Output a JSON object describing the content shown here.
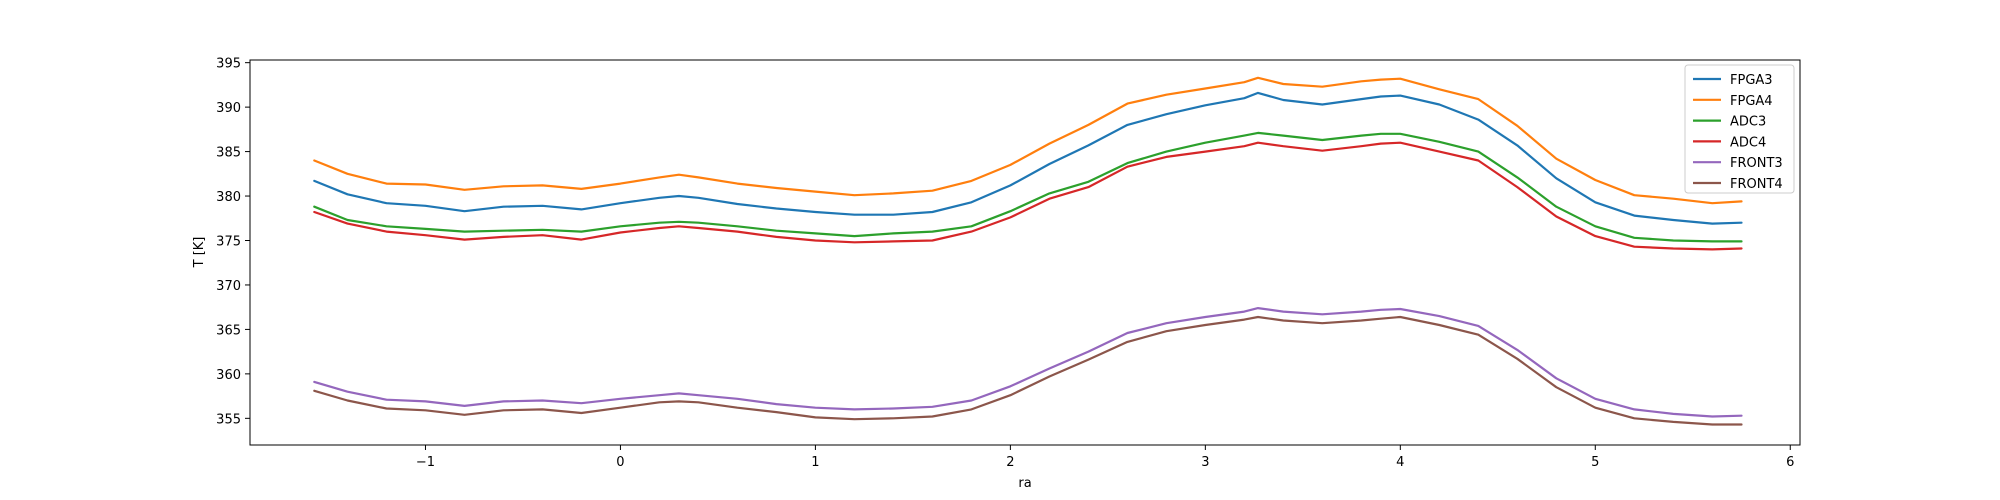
{
  "chart_data": {
    "type": "line",
    "title": "",
    "xlabel": "ra",
    "ylabel": "T [K]",
    "xlim": [
      -1.9,
      6.05
    ],
    "ylim": [
      352,
      395.3
    ],
    "xticks": [
      -1,
      0,
      1,
      2,
      3,
      4,
      5,
      6
    ],
    "xtick_labels": [
      "−1",
      "0",
      "1",
      "2",
      "3",
      "4",
      "5",
      "6"
    ],
    "yticks": [
      355,
      360,
      365,
      370,
      375,
      380,
      385,
      390,
      395
    ],
    "ytick_labels": [
      "355",
      "360",
      "365",
      "370",
      "375",
      "380",
      "385",
      "390",
      "395"
    ],
    "grid": false,
    "legend": "top-right",
    "x": [
      -1.57,
      -1.4,
      -1.2,
      -1.0,
      -0.8,
      -0.6,
      -0.4,
      -0.2,
      0.0,
      0.2,
      0.3,
      0.4,
      0.6,
      0.8,
      1.0,
      1.2,
      1.4,
      1.6,
      1.8,
      2.0,
      2.2,
      2.4,
      2.6,
      2.8,
      3.0,
      3.2,
      3.27,
      3.4,
      3.6,
      3.8,
      3.9,
      4.0,
      4.2,
      4.4,
      4.6,
      4.8,
      5.0,
      5.2,
      5.4,
      5.6,
      5.75
    ],
    "series": [
      {
        "name": "FPGA3",
        "color": "#1f77b4",
        "values": [
          381.7,
          380.2,
          379.2,
          378.9,
          378.3,
          378.8,
          378.9,
          378.5,
          379.2,
          379.8,
          380.0,
          379.8,
          379.1,
          378.6,
          378.2,
          377.9,
          377.9,
          378.2,
          379.3,
          381.2,
          383.6,
          385.7,
          388.0,
          389.2,
          390.2,
          391.0,
          391.6,
          390.8,
          390.3,
          390.9,
          391.2,
          391.3,
          390.3,
          388.6,
          385.7,
          382.0,
          379.3,
          377.8,
          377.3,
          376.9,
          377.0
        ]
      },
      {
        "name": "FPGA4",
        "color": "#ff7f0e",
        "values": [
          384.0,
          382.5,
          381.4,
          381.3,
          380.7,
          381.1,
          381.2,
          380.8,
          381.4,
          382.1,
          382.4,
          382.1,
          381.4,
          380.9,
          380.5,
          380.1,
          380.3,
          380.6,
          381.7,
          383.5,
          385.9,
          388.0,
          390.4,
          391.4,
          392.1,
          392.8,
          393.3,
          392.6,
          392.3,
          392.9,
          393.1,
          393.2,
          392.0,
          390.9,
          387.9,
          384.2,
          381.8,
          380.1,
          379.7,
          379.2,
          379.4
        ]
      },
      {
        "name": "ADC3",
        "color": "#2ca02c",
        "values": [
          378.8,
          377.3,
          376.6,
          376.3,
          376.0,
          376.1,
          376.2,
          376.0,
          376.6,
          377.0,
          377.1,
          377.0,
          376.6,
          376.1,
          375.8,
          375.5,
          375.8,
          376.0,
          376.6,
          378.3,
          380.3,
          381.6,
          383.7,
          385.0,
          386.0,
          386.8,
          387.1,
          386.8,
          386.3,
          386.8,
          387.0,
          387.0,
          386.1,
          385.0,
          382.1,
          378.8,
          376.6,
          375.3,
          375.0,
          374.9,
          374.9
        ]
      },
      {
        "name": "ADC4",
        "color": "#d62728",
        "values": [
          378.2,
          376.9,
          376.0,
          375.6,
          375.1,
          375.4,
          375.6,
          375.1,
          375.9,
          376.4,
          376.6,
          376.4,
          376.0,
          375.4,
          375.0,
          374.8,
          374.9,
          375.0,
          376.0,
          377.6,
          379.7,
          381.0,
          383.3,
          384.4,
          385.0,
          385.6,
          386.0,
          385.6,
          385.1,
          385.6,
          385.9,
          386.0,
          385.0,
          384.0,
          381.0,
          377.7,
          375.5,
          374.3,
          374.1,
          374.0,
          374.1
        ]
      },
      {
        "name": "FRONT3",
        "color": "#9467bd",
        "values": [
          359.1,
          358.0,
          357.1,
          356.9,
          356.4,
          356.9,
          357.0,
          356.7,
          357.2,
          357.6,
          357.8,
          357.6,
          357.2,
          356.6,
          356.2,
          356.0,
          356.1,
          356.3,
          357.0,
          358.6,
          360.6,
          362.5,
          364.6,
          365.7,
          366.4,
          367.0,
          367.4,
          367.0,
          366.7,
          367.0,
          367.2,
          367.3,
          366.5,
          365.4,
          362.7,
          359.5,
          357.2,
          356.0,
          355.5,
          355.2,
          355.3
        ]
      },
      {
        "name": "FRONT4",
        "color": "#8c564b",
        "values": [
          358.1,
          357.0,
          356.1,
          355.9,
          355.4,
          355.9,
          356.0,
          355.6,
          356.2,
          356.8,
          356.9,
          356.8,
          356.2,
          355.7,
          355.1,
          354.9,
          355.0,
          355.2,
          356.0,
          357.6,
          359.7,
          361.6,
          363.6,
          364.8,
          365.5,
          366.1,
          366.4,
          366.0,
          365.7,
          366.0,
          366.2,
          366.4,
          365.5,
          364.4,
          361.7,
          358.5,
          356.2,
          355.0,
          354.6,
          354.3,
          354.3
        ]
      }
    ]
  }
}
